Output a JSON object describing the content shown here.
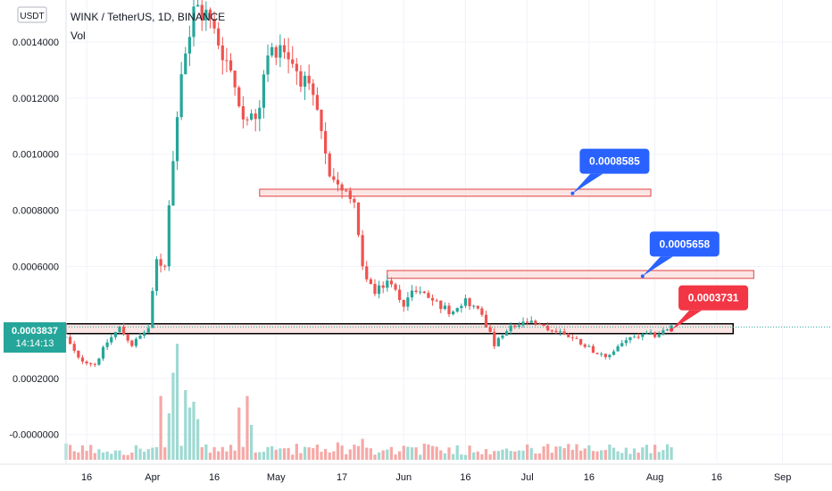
{
  "header": {
    "symbol": "WINK / TetherUS, 1D, BINANCE",
    "indicator": "Vol",
    "currency_badge": "USDT"
  },
  "current_price": {
    "value": "0.0003837",
    "countdown": "14:14:13",
    "color": "#26a69a"
  },
  "colors": {
    "up": "#26a69a",
    "down": "#ef5350",
    "up_vol": "#9fd9d2",
    "down_vol": "#f5a9a7",
    "zone_fill": "#fbe0df",
    "zone_stroke": "#e04040",
    "callout_blue": "#2962ff",
    "callout_red": "#f23645",
    "support_black": "#000000"
  },
  "annotations": [
    {
      "label": "0.0008585",
      "color": "#2962ff",
      "zone_price": [
        0.00085,
        0.000875
      ],
      "zone_dates": [
        "2021-04-27",
        "2021-07-31"
      ],
      "point": [
        "2021-07-12",
        0.00086
      ]
    },
    {
      "label": "0.0005658",
      "color": "#2962ff",
      "zone_price": [
        0.000557,
        0.000585
      ],
      "zone_dates": [
        "2021-05-28",
        "2021-08-25"
      ],
      "point": [
        "2021-07-29",
        0.000565
      ]
    },
    {
      "label": "0.0003731",
      "color": "#f23645",
      "zone_price": [
        0.00036,
        0.000395
      ],
      "zone_dates": [
        "2021-03-11",
        "2021-08-20"
      ],
      "point": [
        "2021-08-05",
        0.000373
      ]
    }
  ],
  "chart_data": {
    "type": "candlestick",
    "title": "WINK / TetherUS, 1D, BINANCE",
    "y_ticks": [
      "0.0014000",
      "0.0012000",
      "0.0010000",
      "0.0008000",
      "0.0006000",
      "0.0002000",
      "-0.0000000"
    ],
    "y_tick_values": [
      0.0014,
      0.0012,
      0.001,
      0.0008,
      0.0006,
      0.0002,
      0.0
    ],
    "ylim": [
      -9e-05,
      0.00155
    ],
    "xlim": [
      "2021-03-11",
      "2021-09-13"
    ],
    "x_ticks": [
      {
        "label": "16",
        "date": "2021-03-16"
      },
      {
        "label": "Apr",
        "date": "2021-04-01"
      },
      {
        "label": "16",
        "date": "2021-04-16"
      },
      {
        "label": "May",
        "date": "2021-05-01"
      },
      {
        "label": "17",
        "date": "2021-05-17"
      },
      {
        "label": "Jun",
        "date": "2021-06-01"
      },
      {
        "label": "16",
        "date": "2021-06-16"
      },
      {
        "label": "Jul",
        "date": "2021-07-01"
      },
      {
        "label": "16",
        "date": "2021-07-16"
      },
      {
        "label": "Aug",
        "date": "2021-08-01"
      },
      {
        "label": "16",
        "date": "2021-08-16"
      },
      {
        "label": "Sep",
        "date": "2021-09-01"
      }
    ],
    "close_path": [
      [
        "2021-03-11",
        0.000345
      ],
      [
        "2021-03-14",
        0.00027
      ],
      [
        "2021-03-18",
        0.00025
      ],
      [
        "2021-03-21",
        0.00033
      ],
      [
        "2021-03-24",
        0.00038
      ],
      [
        "2021-03-27",
        0.00032
      ],
      [
        "2021-03-31",
        0.00038
      ],
      [
        "2021-04-02",
        0.00062
      ],
      [
        "2021-04-04",
        0.0006
      ],
      [
        "2021-04-06",
        0.001
      ],
      [
        "2021-04-08",
        0.0013
      ],
      [
        "2021-04-11",
        0.0015
      ],
      [
        "2021-04-14",
        0.0015
      ],
      [
        "2021-04-17",
        0.0014
      ],
      [
        "2021-04-20",
        0.0013
      ],
      [
        "2021-04-23",
        0.00115
      ],
      [
        "2021-04-26",
        0.0011
      ],
      [
        "2021-04-29",
        0.00135
      ],
      [
        "2021-05-02",
        0.0014
      ],
      [
        "2021-05-05",
        0.00133
      ],
      [
        "2021-05-08",
        0.00125
      ],
      [
        "2021-05-11",
        0.00115
      ],
      [
        "2021-05-14",
        0.0009
      ],
      [
        "2021-05-17",
        0.00086
      ],
      [
        "2021-05-20",
        0.00085
      ],
      [
        "2021-05-22",
        0.0006
      ],
      [
        "2021-05-25",
        0.0005
      ],
      [
        "2021-05-28",
        0.00055
      ],
      [
        "2021-06-01",
        0.00047
      ],
      [
        "2021-06-04",
        0.00052
      ],
      [
        "2021-06-08",
        0.00048
      ],
      [
        "2021-06-12",
        0.00044
      ],
      [
        "2021-06-16",
        0.00048
      ],
      [
        "2021-06-20",
        0.00043
      ],
      [
        "2021-06-23",
        0.00032
      ],
      [
        "2021-06-27",
        0.00038
      ],
      [
        "2021-07-01",
        0.0004
      ],
      [
        "2021-07-05",
        0.00038
      ],
      [
        "2021-07-10",
        0.00036
      ],
      [
        "2021-07-15",
        0.00032
      ],
      [
        "2021-07-20",
        0.00027
      ],
      [
        "2021-07-24",
        0.00033
      ],
      [
        "2021-07-28",
        0.00035
      ],
      [
        "2021-08-01",
        0.000355
      ],
      [
        "2021-08-05",
        0.000384
      ]
    ],
    "volume_ylim": [
      0,
      1.0
    ],
    "volume_spikes": [
      [
        "2021-04-03",
        0.55
      ],
      [
        "2021-04-05",
        0.4
      ],
      [
        "2021-04-06",
        0.75
      ],
      [
        "2021-04-07",
        1.0
      ],
      [
        "2021-04-09",
        0.6
      ],
      [
        "2021-04-10",
        0.45
      ],
      [
        "2021-04-11",
        0.5
      ],
      [
        "2021-04-12",
        0.35
      ],
      [
        "2021-04-22",
        0.45
      ],
      [
        "2021-04-24",
        0.55
      ],
      [
        "2021-04-25",
        0.3
      ],
      [
        "2021-05-16",
        0.15
      ],
      [
        "2021-05-22",
        0.18
      ]
    ]
  }
}
